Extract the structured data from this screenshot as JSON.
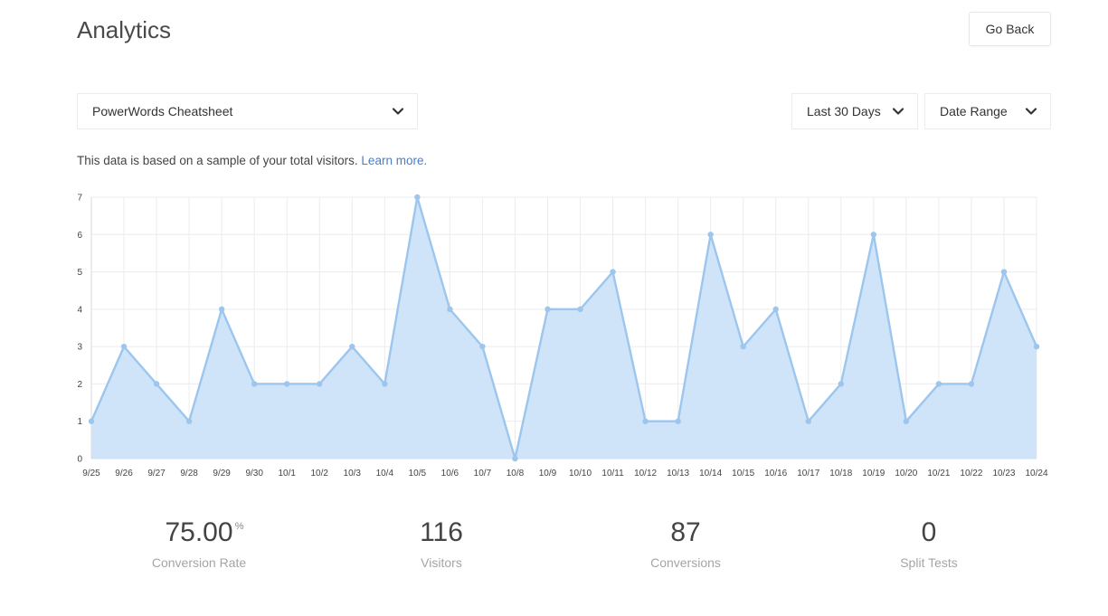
{
  "header": {
    "title": "Analytics",
    "go_back_label": "Go Back"
  },
  "filters": {
    "form_select": "PowerWords Cheatsheet",
    "period_select": "Last 30 Days",
    "range_select": "Date Range"
  },
  "notice": {
    "text": "This data is based on a sample of your total visitors.",
    "link_label": "Learn more."
  },
  "colors": {
    "line": "#9cc6ee",
    "fill": "#cfe4f8",
    "link": "#4a7cc9"
  },
  "icons": {
    "dropdown": "chevron-down-icon"
  },
  "chart_data": {
    "type": "area",
    "x": [
      "9/25",
      "9/26",
      "9/27",
      "9/28",
      "9/29",
      "9/30",
      "10/1",
      "10/2",
      "10/3",
      "10/4",
      "10/5",
      "10/6",
      "10/7",
      "10/8",
      "10/9",
      "10/10",
      "10/11",
      "10/12",
      "10/13",
      "10/14",
      "10/15",
      "10/16",
      "10/17",
      "10/18",
      "10/19",
      "10/20",
      "10/21",
      "10/22",
      "10/23",
      "10/24"
    ],
    "values": [
      1,
      3,
      2,
      1,
      4,
      2,
      2,
      2,
      3,
      2,
      7,
      4,
      3,
      0,
      4,
      4,
      5,
      1,
      1,
      6,
      3,
      4,
      1,
      2,
      6,
      1,
      2,
      2,
      5,
      3
    ],
    "yticks": [
      0,
      1,
      2,
      3,
      4,
      5,
      6,
      7
    ],
    "ylim": [
      0,
      7
    ],
    "grid": true,
    "legend": "none"
  },
  "stats": [
    {
      "value": "75.00",
      "unit": "%",
      "label": "Conversion Rate"
    },
    {
      "value": "116",
      "unit": "",
      "label": "Visitors"
    },
    {
      "value": "87",
      "unit": "",
      "label": "Conversions"
    },
    {
      "value": "0",
      "unit": "",
      "label": "Split Tests"
    }
  ]
}
